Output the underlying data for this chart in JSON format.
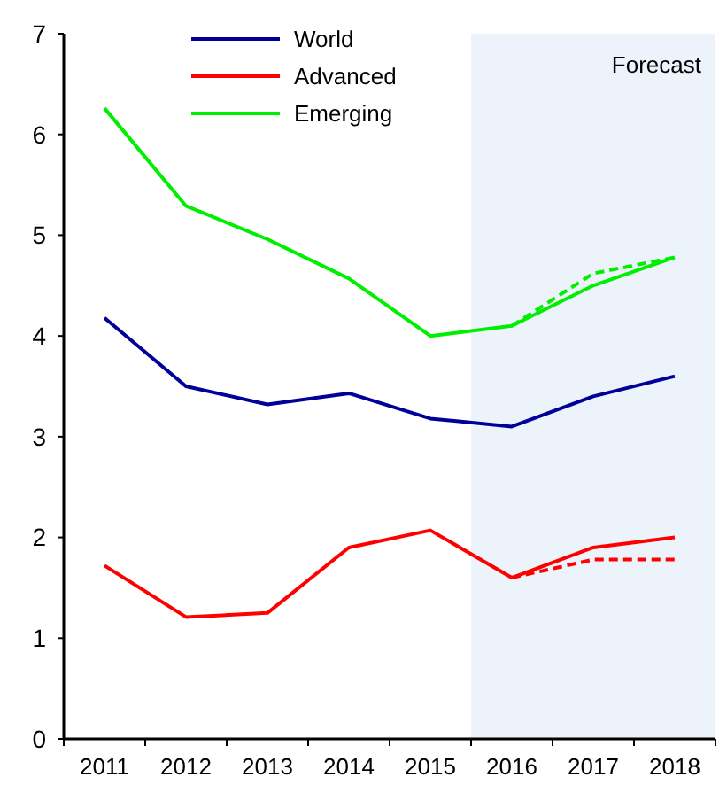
{
  "chart_data": {
    "type": "line",
    "categories": [
      "2011",
      "2012",
      "2013",
      "2014",
      "2015",
      "2016",
      "2017",
      "2018"
    ],
    "series": [
      {
        "name": "World",
        "color": "#000099",
        "values": [
          4.18,
          3.5,
          3.32,
          3.43,
          3.18,
          3.1,
          3.4,
          3.6
        ]
      },
      {
        "name": "Advanced",
        "color": "#ff0000",
        "values": [
          1.72,
          1.21,
          1.25,
          1.9,
          2.07,
          1.6,
          1.9,
          2.0
        ]
      },
      {
        "name": "Emerging",
        "color": "#00ee00",
        "values": [
          6.26,
          5.29,
          4.96,
          4.57,
          4.0,
          4.1,
          4.5,
          4.78
        ]
      },
      {
        "color": "#ff0000",
        "line_style": "dashed",
        "values": [
          null,
          null,
          null,
          null,
          null,
          1.6,
          1.78,
          1.78
        ]
      },
      {
        "color": "#00ee00",
        "line_style": "dashed",
        "values": [
          null,
          null,
          null,
          null,
          null,
          4.1,
          4.62,
          4.78
        ]
      }
    ],
    "ylim": [
      0,
      7
    ],
    "yticks": [
      0,
      1,
      2,
      3,
      4,
      5,
      6,
      7
    ],
    "bands": [
      {
        "axis": "x",
        "from": "2016",
        "to": "2018",
        "label": "Forecast",
        "color": "#edf3fb"
      }
    ],
    "legend": "top left",
    "grid": false,
    "marker": "none",
    "line_style": "solid"
  }
}
